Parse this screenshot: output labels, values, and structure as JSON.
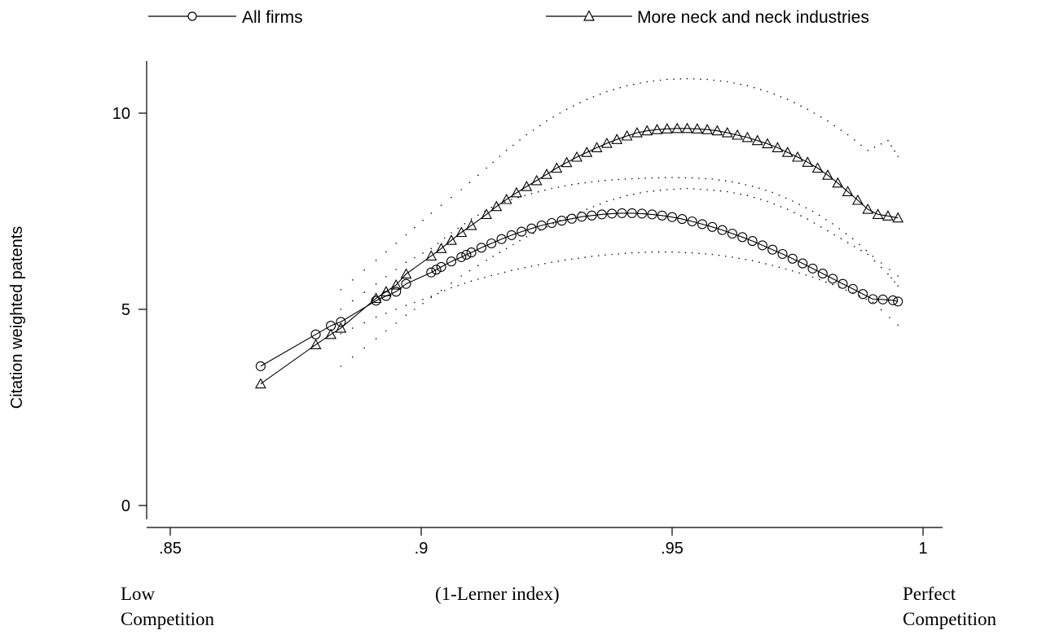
{
  "chart_data": {
    "type": "line",
    "title": "",
    "ylabel": "Citation weighted patents",
    "xlabel": "(1-Lerner index)",
    "xlim": [
      0.845,
      1.004
    ],
    "ylim": [
      -0.5,
      11.2
    ],
    "xticks": [
      0.85,
      0.9,
      0.95,
      1.0
    ],
    "xtick_labels": [
      ".85",
      ".9",
      ".95",
      "1"
    ],
    "yticks": [
      0,
      5,
      10
    ],
    "ytick_labels": [
      "0",
      "5",
      "10"
    ],
    "grid": false,
    "legend_position": "top",
    "annotations": {
      "left_line1": "Low",
      "left_line2": "Competition",
      "right_line1": "Perfect",
      "right_line2": "Competition"
    },
    "series": [
      {
        "name": "All firms",
        "marker": "circle",
        "x": [
          0.868,
          0.879,
          0.882,
          0.884,
          0.891,
          0.893,
          0.895,
          0.897,
          0.902,
          0.903,
          0.904,
          0.906,
          0.908,
          0.909,
          0.91,
          0.912,
          0.914,
          0.916,
          0.918,
          0.92,
          0.922,
          0.924,
          0.926,
          0.928,
          0.93,
          0.932,
          0.934,
          0.936,
          0.938,
          0.94,
          0.942,
          0.944,
          0.946,
          0.948,
          0.95,
          0.952,
          0.954,
          0.956,
          0.958,
          0.96,
          0.962,
          0.964,
          0.966,
          0.968,
          0.97,
          0.972,
          0.974,
          0.976,
          0.978,
          0.98,
          0.982,
          0.984,
          0.986,
          0.988,
          0.99,
          0.992,
          0.994,
          0.995
        ],
        "y": [
          3.55,
          4.36,
          4.58,
          4.68,
          5.22,
          5.34,
          5.45,
          5.65,
          5.94,
          6.01,
          6.08,
          6.22,
          6.33,
          6.39,
          6.45,
          6.57,
          6.68,
          6.79,
          6.89,
          6.98,
          7.06,
          7.14,
          7.2,
          7.26,
          7.31,
          7.36,
          7.39,
          7.42,
          7.44,
          7.45,
          7.45,
          7.44,
          7.42,
          7.39,
          7.35,
          7.3,
          7.24,
          7.17,
          7.1,
          7.02,
          6.93,
          6.84,
          6.74,
          6.63,
          6.52,
          6.41,
          6.29,
          6.17,
          6.04,
          5.91,
          5.78,
          5.65,
          5.52,
          5.39,
          5.26,
          5.25,
          5.23,
          5.2
        ],
        "ci_upper": [
          null,
          null,
          null,
          5.0,
          5.65,
          null,
          null,
          6.2,
          6.55,
          null,
          null,
          6.95,
          null,
          null,
          7.3,
          null,
          7.6,
          null,
          7.8,
          null,
          7.95,
          null,
          8.08,
          null,
          8.18,
          null,
          8.25,
          null,
          8.3,
          null,
          8.33,
          null,
          8.35,
          null,
          8.36,
          null,
          8.35,
          null,
          8.32,
          null,
          8.25,
          null,
          8.14,
          null,
          7.98,
          null,
          7.76,
          null,
          7.5,
          null,
          7.18,
          null,
          6.8,
          null,
          6.35,
          null,
          null,
          5.85
        ],
        "ci_lower": [
          null,
          null,
          null,
          4.38,
          4.8,
          null,
          null,
          5.1,
          5.33,
          null,
          null,
          5.55,
          null,
          null,
          5.72,
          null,
          5.86,
          null,
          5.99,
          null,
          6.1,
          null,
          6.2,
          null,
          6.28,
          null,
          6.35,
          null,
          6.4,
          null,
          6.44,
          null,
          6.46,
          null,
          6.46,
          null,
          6.44,
          null,
          6.4,
          null,
          6.33,
          null,
          6.24,
          null,
          6.12,
          null,
          5.98,
          null,
          5.82,
          null,
          5.63,
          null,
          5.42,
          null,
          5.18,
          null,
          null,
          4.6
        ]
      },
      {
        "name": "More neck and neck industries",
        "marker": "triangle",
        "x": [
          0.868,
          0.879,
          0.882,
          0.884,
          0.891,
          0.893,
          0.895,
          0.897,
          0.902,
          0.904,
          0.906,
          0.908,
          0.91,
          0.913,
          0.915,
          0.917,
          0.919,
          0.921,
          0.923,
          0.925,
          0.927,
          0.929,
          0.931,
          0.933,
          0.935,
          0.937,
          0.939,
          0.941,
          0.943,
          0.945,
          0.947,
          0.949,
          0.951,
          0.953,
          0.955,
          0.957,
          0.959,
          0.961,
          0.963,
          0.965,
          0.967,
          0.969,
          0.971,
          0.973,
          0.975,
          0.977,
          0.979,
          0.981,
          0.983,
          0.985,
          0.987,
          0.989,
          0.991,
          0.993,
          0.995
        ],
        "y": [
          3.1,
          4.1,
          4.36,
          4.52,
          5.28,
          5.45,
          5.62,
          5.9,
          6.36,
          6.55,
          6.76,
          6.96,
          7.14,
          7.42,
          7.62,
          7.8,
          7.97,
          8.13,
          8.28,
          8.44,
          8.6,
          8.74,
          8.88,
          9.0,
          9.12,
          9.23,
          9.33,
          9.42,
          9.5,
          9.55,
          9.58,
          9.6,
          9.61,
          9.61,
          9.6,
          9.58,
          9.55,
          9.5,
          9.44,
          9.38,
          9.3,
          9.22,
          9.12,
          9.0,
          8.88,
          8.75,
          8.6,
          8.42,
          8.22,
          8.0,
          7.78,
          7.55,
          7.42,
          7.38,
          7.33
        ],
        "ci_upper": [
          null,
          null,
          null,
          5.5,
          6.25,
          null,
          null,
          6.9,
          7.45,
          null,
          null,
          8.05,
          null,
          8.6,
          null,
          9.05,
          null,
          9.45,
          null,
          9.8,
          null,
          10.1,
          null,
          10.35,
          null,
          10.55,
          null,
          10.7,
          null,
          10.8,
          null,
          10.86,
          null,
          10.88,
          null,
          10.86,
          null,
          10.8,
          null,
          10.7,
          null,
          10.55,
          null,
          10.35,
          null,
          10.1,
          null,
          9.8,
          null,
          9.45,
          null,
          9.05,
          null,
          9.3,
          8.9
        ],
        "ci_lower": [
          null,
          null,
          null,
          3.55,
          4.25,
          null,
          null,
          4.85,
          5.3,
          null,
          null,
          5.85,
          null,
          6.25,
          null,
          6.55,
          null,
          6.85,
          null,
          7.1,
          null,
          7.35,
          null,
          7.55,
          null,
          7.75,
          null,
          7.9,
          null,
          8.0,
          null,
          8.05,
          null,
          8.08,
          null,
          8.05,
          null,
          8.0,
          null,
          7.9,
          null,
          7.75,
          null,
          7.55,
          null,
          7.3,
          null,
          7.0,
          null,
          6.7,
          null,
          6.4,
          null,
          5.9,
          5.6
        ]
      }
    ]
  }
}
